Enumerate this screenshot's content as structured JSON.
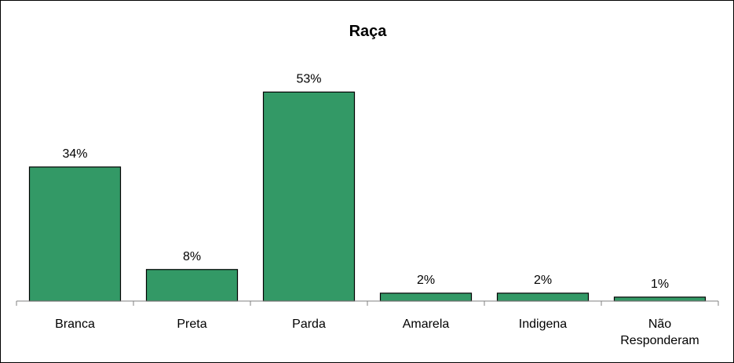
{
  "chart_data": {
    "type": "bar",
    "title": "Raça",
    "xlabel": "",
    "ylabel": "",
    "categories": [
      "Branca",
      "Preta",
      "Parda",
      "Amarela",
      "Indigena",
      "Não Responderam"
    ],
    "values": [
      34,
      8,
      53,
      2,
      2,
      1
    ],
    "value_suffix": "%",
    "ylim": [
      0,
      60
    ],
    "grid": false,
    "legend": "none",
    "colors": {
      "bar_fill": "#339966",
      "bar_stroke": "#000000",
      "axis": "#808080"
    }
  }
}
